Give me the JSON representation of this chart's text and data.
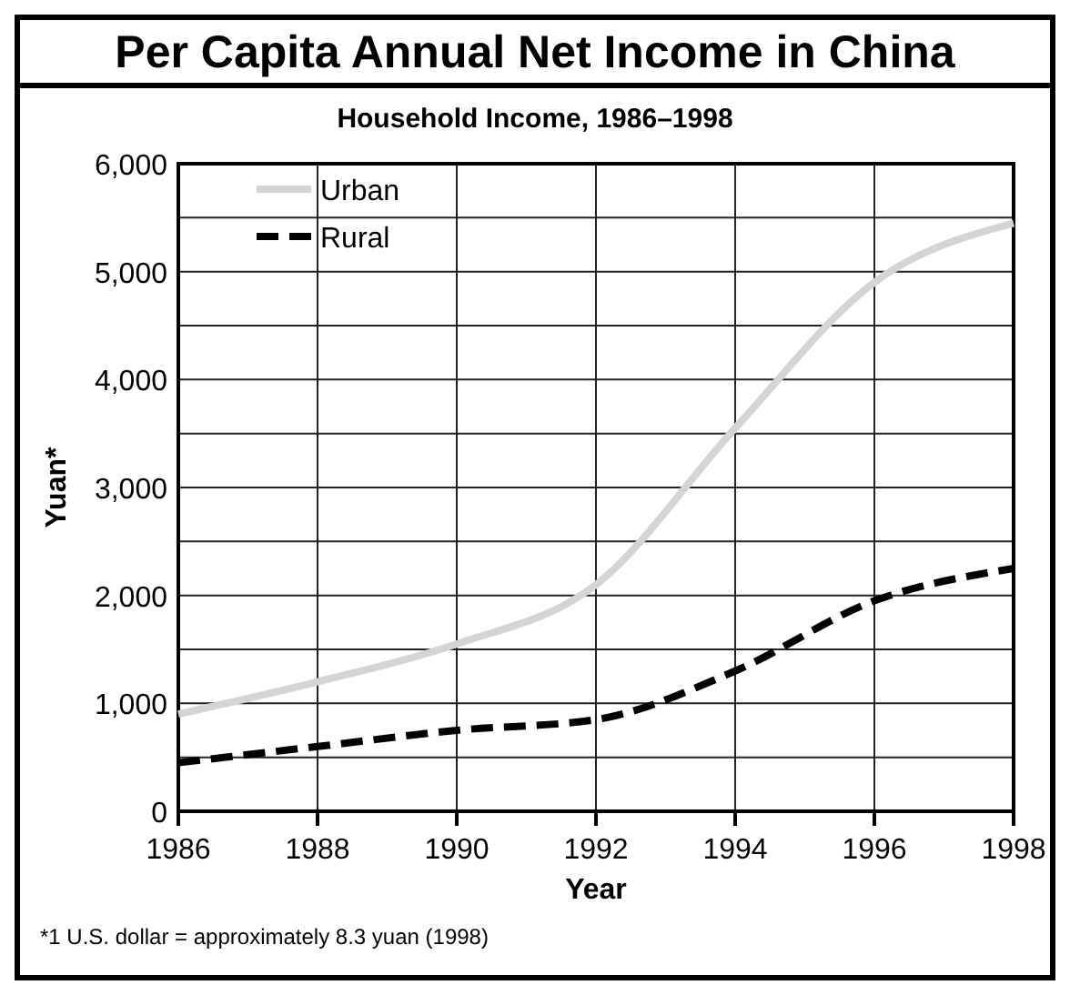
{
  "chart_data": {
    "type": "line",
    "title": "Per Capita Annual Net Income in China",
    "subtitle": "Household Income, 1986–1998",
    "xlabel": "Year",
    "ylabel": "Yuan*",
    "x": [
      1986,
      1988,
      1990,
      1992,
      1994,
      1996,
      1998
    ],
    "series": [
      {
        "name": "Urban",
        "color": "#d4d4d4",
        "values": [
          900,
          1200,
          1550,
          2100,
          3550,
          4900,
          5450
        ],
        "line_style": "solid"
      },
      {
        "name": "Rural",
        "color": "#000000",
        "values": [
          450,
          600,
          750,
          850,
          1300,
          1950,
          2250
        ],
        "line_style": "dashed"
      }
    ],
    "xlim": [
      1986,
      1998
    ],
    "xticks": [
      1986,
      1988,
      1990,
      1992,
      1994,
      1996,
      1998
    ],
    "ylim": [
      0,
      6000
    ],
    "yticks": [
      {
        "value": 0,
        "label": "0"
      },
      {
        "value": 500,
        "label": null
      },
      {
        "value": 1000,
        "label": "1,000"
      },
      {
        "value": 1500,
        "label": null
      },
      {
        "value": 2000,
        "label": "2,000"
      },
      {
        "value": 2500,
        "label": null
      },
      {
        "value": 3000,
        "label": "3,000"
      },
      {
        "value": 3500,
        "label": null
      },
      {
        "value": 4000,
        "label": "4,000"
      },
      {
        "value": 4500,
        "label": null
      },
      {
        "value": 5000,
        "label": "5,000"
      },
      {
        "value": 5500,
        "label": null
      },
      {
        "value": 6000,
        "label": "6,000"
      }
    ],
    "grid": true,
    "legend": "top left",
    "marker": "none",
    "annotations": [
      "*1 U.S. dollar = approximately 8.3 yuan (1998)"
    ]
  }
}
